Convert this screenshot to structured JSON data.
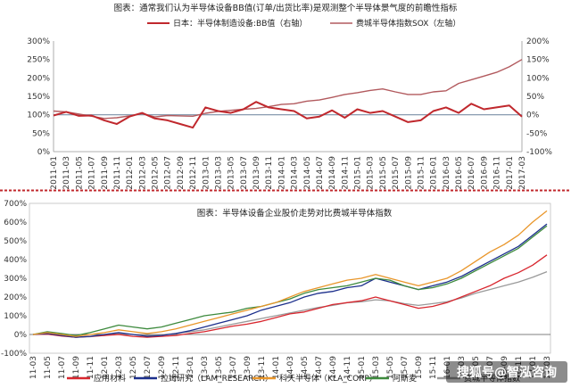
{
  "chart_data": [
    {
      "type": "line",
      "title": "图表：通常我们认为半导体设备BB值(订单/出货比率)是观测整个半导体景气度的前瞻性指标",
      "x": [
        "2011-01",
        "2011-03",
        "2011-05",
        "2011-07",
        "2011-09",
        "2011-11",
        "2012-01",
        "2012-03",
        "2012-05",
        "2012-07",
        "2012-09",
        "2012-11",
        "2013-01",
        "2013-03",
        "2013-05",
        "2013-07",
        "2013-09",
        "2013-11",
        "2014-01",
        "2014-03",
        "2014-05",
        "2014-07",
        "2014-09",
        "2014-11",
        "2015-01",
        "2015-03",
        "2015-05",
        "2015-07",
        "2015-09",
        "2015-11",
        "2016-01",
        "2016-03",
        "2016-05",
        "2016-07",
        "2016-09",
        "2016-11",
        "2017-01",
        "2017-03"
      ],
      "left_axis": {
        "ylim": [
          0,
          300
        ],
        "ticks": [
          "0%",
          "50%",
          "100%",
          "150%",
          "200%",
          "250%",
          "300%"
        ]
      },
      "right_axis": {
        "ylim": [
          -100,
          200
        ],
        "ticks": [
          "-100%",
          "-50%",
          "0%",
          "50%",
          "100%",
          "150%",
          "200%"
        ]
      },
      "legend_position": "top",
      "baseline_right_value": 0,
      "series": [
        {
          "name": "日本：半导体制造设备:BB值（右轴）",
          "axis": "right",
          "color": "#c0282d",
          "width": 2,
          "values": [
            -2,
            8,
            -3,
            -2,
            -15,
            -25,
            -5,
            5,
            -10,
            -15,
            -25,
            -35,
            20,
            10,
            5,
            15,
            35,
            20,
            15,
            10,
            -10,
            -5,
            12,
            -8,
            15,
            5,
            10,
            -5,
            -20,
            -15,
            10,
            20,
            5,
            30,
            15,
            20,
            25,
            -5
          ]
        },
        {
          "name": "费城半导体指数SOX（左轴）",
          "axis": "left",
          "color": "#b25a5e",
          "width": 1.4,
          "values": [
            110,
            108,
            102,
            96,
            90,
            92,
            97,
            103,
            94,
            98,
            97,
            96,
            104,
            109,
            112,
            115,
            117,
            122,
            128,
            130,
            137,
            140,
            147,
            155,
            160,
            166,
            170,
            162,
            155,
            155,
            162,
            165,
            185,
            195,
            205,
            215,
            230,
            250
          ]
        }
      ]
    },
    {
      "type": "line",
      "title": "图表：半导体设备企业股价走势对比费城半导体指数",
      "x": [
        "11-03",
        "11-05",
        "11-07",
        "11-09",
        "11-11",
        "12-01",
        "12-03",
        "12-05",
        "12-07",
        "12-09",
        "12-11",
        "13-01",
        "13-03",
        "13-05",
        "13-07",
        "13-09",
        "13-11",
        "14-01",
        "14-03",
        "14-05",
        "14-07",
        "14-09",
        "14-11",
        "15-01",
        "15-03",
        "15-05",
        "15-07",
        "15-09",
        "15-11",
        "16-01",
        "16-03",
        "16-05",
        "16-07",
        "16-09",
        "16-11",
        "17-01",
        "17-03"
      ],
      "y_axis": {
        "ylim": [
          -100,
          700
        ],
        "ticks": [
          "-100%",
          "0%",
          "100%",
          "200%",
          "300%",
          "400%",
          "500%",
          "600%",
          "700%"
        ]
      },
      "legend_position": "bottom",
      "series": [
        {
          "name": "应用材料",
          "color": "#d8262e",
          "values": [
            0,
            2,
            -8,
            -15,
            -10,
            -5,
            0,
            -10,
            -15,
            -10,
            -5,
            5,
            15,
            30,
            45,
            55,
            70,
            90,
            110,
            120,
            140,
            160,
            170,
            180,
            200,
            180,
            160,
            140,
            150,
            170,
            200,
            230,
            260,
            300,
            330,
            370,
            425
          ]
        },
        {
          "name": "拉姆研究（LAM_RESEARCH）",
          "color": "#1c2f8c",
          "values": [
            0,
            5,
            -5,
            -15,
            -10,
            0,
            10,
            0,
            -10,
            -5,
            5,
            20,
            40,
            60,
            80,
            100,
            130,
            150,
            170,
            200,
            220,
            230,
            250,
            260,
            300,
            280,
            260,
            240,
            260,
            280,
            310,
            350,
            390,
            430,
            470,
            530,
            590
          ]
        },
        {
          "name": "科天半导体（KLA_CORP）",
          "color": "#e9962a",
          "values": [
            0,
            10,
            0,
            -10,
            0,
            10,
            25,
            15,
            5,
            15,
            30,
            50,
            70,
            90,
            110,
            130,
            150,
            170,
            200,
            230,
            250,
            270,
            290,
            300,
            320,
            300,
            280,
            260,
            280,
            300,
            340,
            390,
            440,
            480,
            530,
            600,
            660
          ]
        },
        {
          "name": "阿斯麦",
          "color": "#3d8a3d",
          "values": [
            0,
            15,
            5,
            -5,
            10,
            30,
            50,
            40,
            30,
            40,
            60,
            80,
            100,
            110,
            120,
            140,
            150,
            170,
            190,
            220,
            240,
            250,
            260,
            280,
            300,
            290,
            260,
            240,
            250,
            270,
            300,
            340,
            380,
            420,
            460,
            520,
            580
          ]
        },
        {
          "name": "费城半导体指数",
          "color": "#9a9a9a",
          "values": [
            0,
            2,
            -5,
            -15,
            -12,
            -5,
            5,
            0,
            -5,
            -2,
            5,
            15,
            25,
            40,
            55,
            70,
            85,
            100,
            115,
            130,
            145,
            155,
            170,
            175,
            185,
            180,
            165,
            155,
            165,
            175,
            195,
            220,
            240,
            260,
            280,
            305,
            335
          ]
        }
      ]
    }
  ],
  "watermark": {
    "text_1": "搜狐号@智泓咨询"
  }
}
